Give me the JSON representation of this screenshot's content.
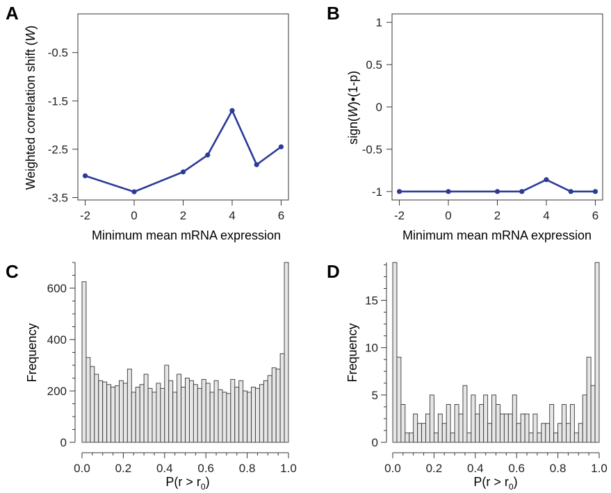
{
  "colors": {
    "line": "#2b3a97",
    "bar_fill": "#e6e6e6",
    "bar_stroke": "#333333",
    "axis": "#333333"
  },
  "panels": [
    {
      "letter": "A",
      "ylabel": "Weighted correlation shift (",
      "ylabel_italic": "W",
      "ylabel_tail": ")",
      "xlabel": "Minimum mean mRNA expression"
    },
    {
      "letter": "B",
      "ylabel": "sign(",
      "ylabel_italic": "W",
      "ylabel_tail": ")•(1-p)",
      "xlabel": "Minimum mean mRNA expression"
    },
    {
      "letter": "C",
      "ylabel": "Frequency",
      "xlabel_main": "P(r > r",
      "xlabel_sub": "0",
      "xlabel_tail": ")"
    },
    {
      "letter": "D",
      "ylabel": "Frequency",
      "xlabel_main": "P(r > r",
      "xlabel_sub": "0",
      "xlabel_tail": ")"
    }
  ],
  "chart_data": [
    {
      "panel": "A",
      "type": "line",
      "xlabel": "Minimum mean mRNA expression",
      "ylabel": "Weighted correlation shift (W)",
      "xlim": [
        -2.3,
        6.3
      ],
      "ylim": [
        -3.55,
        0.3
      ],
      "x_ticks": [
        -2,
        0,
        2,
        4,
        6
      ],
      "y_ticks": [
        -3.5,
        -2.5,
        -1.5,
        -0.5
      ],
      "x_tick_labels": [
        "-2",
        "0",
        "2",
        "4",
        "6"
      ],
      "y_tick_labels": [
        "-3.5",
        "-2.5",
        "-1.5",
        "-0.5"
      ],
      "x": [
        -2,
        0,
        2,
        3,
        4,
        5,
        6
      ],
      "y": [
        -3.05,
        -3.38,
        -2.97,
        -2.62,
        -1.7,
        -2.82,
        -2.45
      ]
    },
    {
      "panel": "B",
      "type": "line",
      "xlabel": "Minimum mean mRNA expression",
      "ylabel": "sign(W)•(1-p)",
      "xlim": [
        -2.3,
        6.3
      ],
      "ylim": [
        -1.1,
        1.1
      ],
      "x_ticks": [
        -2,
        0,
        2,
        4,
        6
      ],
      "y_ticks": [
        -1,
        -0.5,
        0,
        0.5,
        1
      ],
      "x_tick_labels": [
        "-2",
        "0",
        "2",
        "4",
        "6"
      ],
      "y_tick_labels": [
        "-1",
        "-0.5",
        "0",
        "0.5",
        "1"
      ],
      "x": [
        -2,
        0,
        2,
        3,
        4,
        5,
        6
      ],
      "y": [
        -1.0,
        -1.0,
        -1.0,
        -1.0,
        -0.86,
        -1.0,
        -1.0
      ]
    },
    {
      "panel": "C",
      "type": "bar",
      "xlabel": "P(r > r0)",
      "ylabel": "Frequency",
      "xlim": [
        0,
        1
      ],
      "ylim": [
        0,
        700
      ],
      "bin_width": 0.02,
      "x_ticks": [
        0,
        0.2,
        0.4,
        0.6,
        0.8,
        1.0
      ],
      "y_ticks": [
        0,
        200,
        400,
        600
      ],
      "x_tick_labels": [
        "0.0",
        "0.2",
        "0.4",
        "0.6",
        "0.8",
        "1.0"
      ],
      "y_tick_labels": [
        "0",
        "200",
        "400",
        "600"
      ],
      "values": [
        625,
        330,
        295,
        265,
        240,
        235,
        225,
        215,
        220,
        240,
        230,
        285,
        195,
        215,
        225,
        265,
        210,
        195,
        230,
        210,
        300,
        240,
        195,
        265,
        215,
        250,
        240,
        225,
        210,
        245,
        230,
        195,
        240,
        205,
        195,
        190,
        245,
        215,
        240,
        200,
        195,
        215,
        210,
        225,
        240,
        260,
        290,
        285,
        345,
        700
      ]
    },
    {
      "panel": "D",
      "type": "bar",
      "xlabel": "P(r > r0)",
      "ylabel": "Frequency",
      "xlim": [
        0,
        1
      ],
      "ylim": [
        0,
        19
      ],
      "bin_width": 0.02,
      "x_ticks": [
        0,
        0.2,
        0.4,
        0.6,
        0.8,
        1.0
      ],
      "y_ticks": [
        0,
        5,
        10,
        15
      ],
      "x_tick_labels": [
        "0.0",
        "0.2",
        "0.4",
        "0.6",
        "0.8",
        "1.0"
      ],
      "y_tick_labels": [
        "0",
        "5",
        "10",
        "15"
      ],
      "values": [
        19,
        9,
        4,
        1,
        1,
        3,
        2,
        2,
        3,
        5,
        1,
        3,
        2,
        4,
        1,
        4,
        3,
        6,
        1,
        5,
        3,
        4,
        5,
        2,
        5,
        4,
        3,
        3,
        3,
        5,
        2,
        3,
        3,
        1,
        3,
        1,
        2,
        2,
        4,
        1,
        2,
        4,
        2,
        4,
        1,
        2,
        5,
        9,
        6,
        19
      ]
    }
  ]
}
